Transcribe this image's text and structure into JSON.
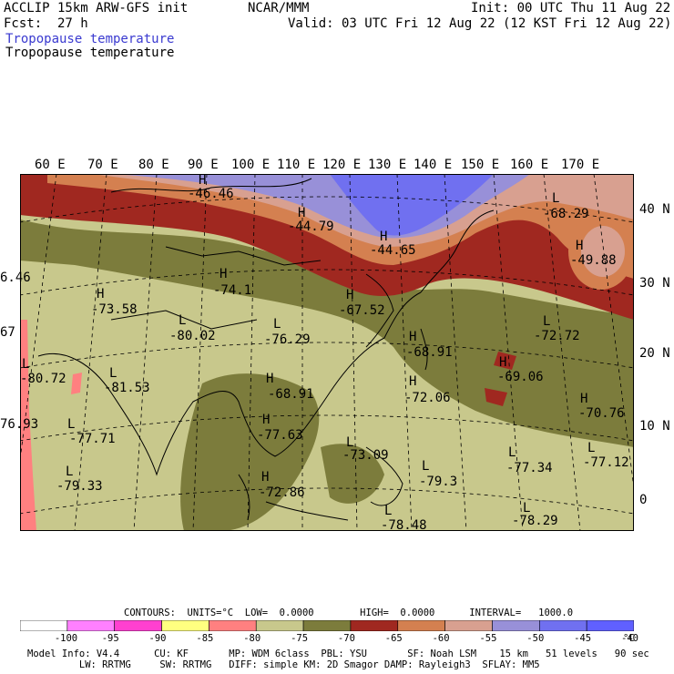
{
  "header": {
    "model": "ACCLIP 15km ARW-GFS init",
    "org": "NCAR/MMM",
    "init": "Init: 00 UTC Thu 11 Aug 22",
    "fcst": "Fcst:  27 h",
    "valid": "Valid: 03 UTC Fri 12 Aug 22 (12 KST Fri 12 Aug 22)",
    "field_title_1": "Tropopause temperature",
    "field_title_2": "Tropopause temperature"
  },
  "map": {
    "lon_labels": [
      "60 E",
      "70 E",
      "80 E",
      "90 E",
      "100 E",
      "110 E",
      "120 E",
      "130 E",
      "140 E",
      "150 E",
      "160 E",
      "170 E"
    ],
    "lat_labels": [
      "40 N",
      "30 N",
      "20 N",
      "10 N",
      "0"
    ],
    "pressure_labels": [
      {
        "sym": "H",
        "val": "-46.46"
      },
      {
        "sym": "L",
        "val": "-68.29"
      },
      {
        "sym": "H",
        "val": "-44.79"
      },
      {
        "sym": "H",
        "val": "-44.65"
      },
      {
        "sym": "H",
        "val": "-49.88"
      },
      {
        "sym": "",
        "val": "6.46"
      },
      {
        "sym": "H",
        "val": "-74.1"
      },
      {
        "sym": "H",
        "val": "-73.58"
      },
      {
        "sym": "H",
        "val": "-67.52"
      },
      {
        "sym": "L",
        "val": "-80.02"
      },
      {
        "sym": "L",
        "val": "-76.29"
      },
      {
        "sym": "L",
        "val": "-72.72"
      },
      {
        "sym": "",
        "val": "67"
      },
      {
        "sym": "H",
        "val": "-68.91"
      },
      {
        "sym": "L",
        "val": "-80.72"
      },
      {
        "sym": "H",
        "val": "-69.06"
      },
      {
        "sym": "L",
        "val": "-81.53"
      },
      {
        "sym": "H",
        "val": "-68.91"
      },
      {
        "sym": "H",
        "val": "-72.06"
      },
      {
        "sym": "H",
        "val": "-70.76"
      },
      {
        "sym": "",
        "val": "76.93"
      },
      {
        "sym": "H",
        "val": "-77.63"
      },
      {
        "sym": "L",
        "val": "-77.71"
      },
      {
        "sym": "L",
        "val": "-73.09"
      },
      {
        "sym": "L",
        "val": "-77.34"
      },
      {
        "sym": "L",
        "val": "-77.12"
      },
      {
        "sym": "L",
        "val": "-79.33"
      },
      {
        "sym": "L",
        "val": "-79.3"
      },
      {
        "sym": "H",
        "val": "-72.86"
      },
      {
        "sym": "L",
        "val": "-78.48"
      },
      {
        "sym": "L",
        "val": "-78.29"
      }
    ]
  },
  "contours_line": "CONTOURS:  UNITS=°C  LOW=  0.0000        HIGH=  0.0000      INTERVAL=   1000.0",
  "colorbar": {
    "colors": [
      "#ffffff",
      "#ff80ff",
      "#ff40d0",
      "#ffff80",
      "#ff8080",
      "#c8c88c",
      "#7c7c3c",
      "#a02820",
      "#d48050",
      "#d8a090",
      "#9890d8",
      "#7070f0",
      "#6060ff"
    ],
    "labels": [
      "-100",
      "-95",
      "-90",
      "-85",
      "-80",
      "-75",
      "-70",
      "-65",
      "-60",
      "-55",
      "-50",
      "-45",
      "-40",
      "°C"
    ]
  },
  "info": {
    "line1": "Model Info: V4.4      CU: KF       MP: WDM 6class  PBL: YSU       SF: Noah LSM    15 km   51 levels   90 sec",
    "line2": "         LW: RRTMG     SW: RRTMG   DIFF: simple KM: 2D Smagor DAMP: Rayleigh3  SFLAY: MM5"
  }
}
